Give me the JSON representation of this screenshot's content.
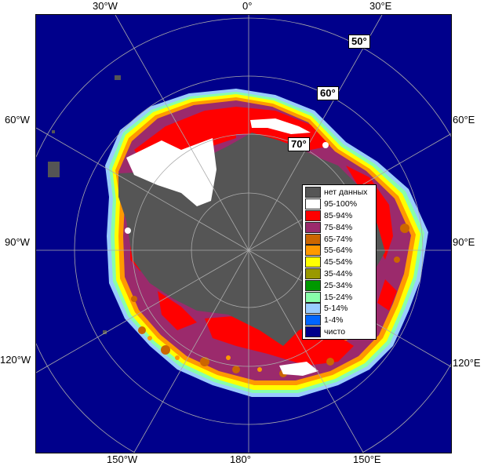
{
  "longitude_labels": {
    "top_30w": "30°W",
    "top_0": "0°",
    "top_30e": "30°E",
    "left_60w": "60°W",
    "right_60e": "60°E",
    "left_90w": "90°W",
    "right_90e": "90°E",
    "left_120w": "120°W",
    "right_120e": "120°E",
    "bottom_150w": "150°W",
    "bottom_180": "180°",
    "bottom_150e": "150°E"
  },
  "latitude_labels": {
    "lat_50": "50°",
    "lat_60": "60°",
    "lat_70": "70°"
  },
  "legend": [
    {
      "label": "нет данных",
      "color": "#555555"
    },
    {
      "label": "95-100%",
      "color": "#ffffff"
    },
    {
      "label": "85-94%",
      "color": "#ff0000"
    },
    {
      "label": "75-84%",
      "color": "#9b2a6c"
    },
    {
      "label": "65-74%",
      "color": "#cc6600"
    },
    {
      "label": "55-64%",
      "color": "#ff9900"
    },
    {
      "label": "45-54%",
      "color": "#ffff00"
    },
    {
      "label": "35-44%",
      "color": "#999900"
    },
    {
      "label": "25-34%",
      "color": "#009900"
    },
    {
      "label": "15-24%",
      "color": "#88ffaa"
    },
    {
      "label": "5-14%",
      "color": "#99ccff"
    },
    {
      "label": "1-4%",
      "color": "#0066ff"
    },
    {
      "label": "чисто",
      "color": "#00008b"
    }
  ],
  "colors": {
    "ocean": "#00008b",
    "land": "#555555",
    "ice_high": "#ff0000",
    "ice_mid": "#9b2a6c",
    "ice_white": "#ffffff",
    "grid": "#aaaaaa"
  }
}
